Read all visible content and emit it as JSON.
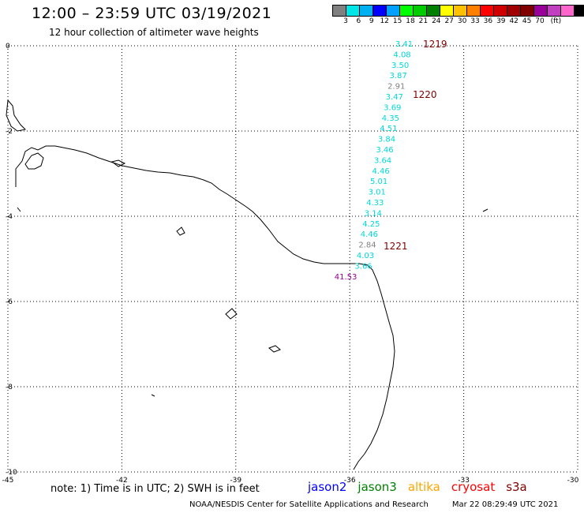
{
  "header": {
    "title": "12:00 – 23:59 UTC 03/19/2021",
    "subtitle": "12 hour collection of altimeter wave heights"
  },
  "legend": {
    "colors": [
      "#808080",
      "#00e5e5",
      "#00b0f0",
      "#0000ff",
      "#00a0ff",
      "#00ff00",
      "#00cc00",
      "#008000",
      "#ffff00",
      "#ffc000",
      "#ff8000",
      "#ff0000",
      "#d00000",
      "#a00000",
      "#800000",
      "#990099",
      "#c040c0",
      "#ff66cc",
      "#000000"
    ],
    "labels": [
      "3",
      "6",
      "9",
      "12",
      "15",
      "18",
      "21",
      "24",
      "27",
      "30",
      "33",
      "36",
      "39",
      "42",
      "45",
      "70",
      "(ft)"
    ]
  },
  "map": {
    "x_ticks": [
      "-45",
      "-42",
      "-39",
      "-36",
      "-33",
      "-30"
    ],
    "y_ticks": [
      "0",
      "-2",
      "-4",
      "-6",
      "-8",
      "-10"
    ],
    "wave_labels": [
      {
        "text": "3.41",
        "color": "#00d8d8"
      },
      {
        "text": "4.08",
        "color": "#00d8d8"
      },
      {
        "text": "3.50",
        "color": "#00d8d8"
      },
      {
        "text": "3.87",
        "color": "#00d8d8"
      },
      {
        "text": "2.91",
        "color": "#808080"
      },
      {
        "text": "3.47",
        "color": "#00d8d8"
      },
      {
        "text": "3.69",
        "color": "#00d8d8"
      },
      {
        "text": "4.35",
        "color": "#00d8d8"
      },
      {
        "text": "4.51",
        "color": "#00d8d8"
      },
      {
        "text": "3.84",
        "color": "#00d8d8"
      },
      {
        "text": "3.46",
        "color": "#00d8d8"
      },
      {
        "text": "3.64",
        "color": "#00d8d8"
      },
      {
        "text": "4.46",
        "color": "#00d8d8"
      },
      {
        "text": "5.01",
        "color": "#00d8d8"
      },
      {
        "text": "3.01",
        "color": "#00d8d8"
      },
      {
        "text": "4.33",
        "color": "#00d8d8"
      },
      {
        "text": "3.14",
        "color": "#00d8d8"
      },
      {
        "text": "4.25",
        "color": "#00d8d8"
      },
      {
        "text": "4.46",
        "color": "#00d8d8"
      },
      {
        "text": "2.84",
        "color": "#808080"
      },
      {
        "text": "4.03",
        "color": "#00d8d8"
      },
      {
        "text": "3.66",
        "color": "#00d8d8"
      },
      {
        "text": "41.53",
        "color": "#990099"
      }
    ],
    "time_labels": [
      {
        "text": "1219",
        "color": "#800000"
      },
      {
        "text": "1220",
        "color": "#800000"
      },
      {
        "text": "1221",
        "color": "#800000"
      }
    ]
  },
  "footer": {
    "note": "note:  1) Time is in UTC;  2) SWH is in feet",
    "satellites": [
      {
        "name": "jason2",
        "color": "#0000ff"
      },
      {
        "name": "jason3",
        "color": "#008000"
      },
      {
        "name": "altika",
        "color": "#ffa500"
      },
      {
        "name": "cryosat",
        "color": "#ff0000"
      },
      {
        "name": "s3a",
        "color": "#800000"
      }
    ],
    "credit_left": "NOAA/NESDIS Center for Satellite Applications and Research",
    "credit_right": "Mar 22 08:29:49 UTC 2021"
  }
}
